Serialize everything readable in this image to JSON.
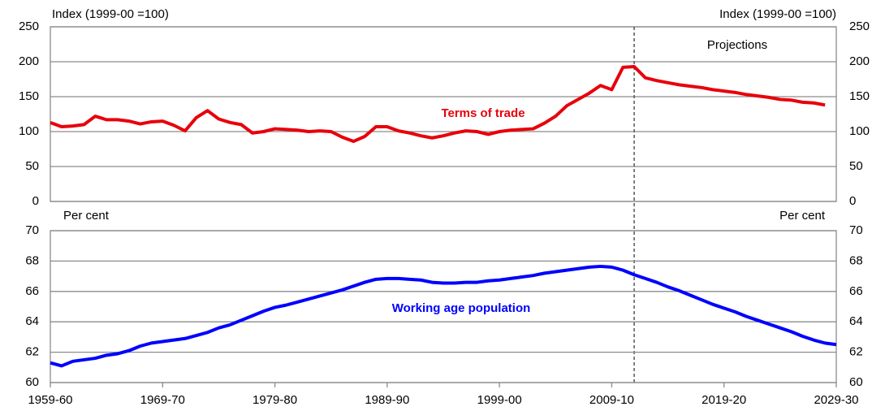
{
  "chart_data": [
    {
      "type": "line",
      "ylabel": "Index (1999-00 =100)",
      "annotation": "Projections",
      "projection_x": 2011,
      "x": [
        1959,
        1960,
        1961,
        1962,
        1963,
        1964,
        1965,
        1966,
        1967,
        1968,
        1969,
        1970,
        1971,
        1972,
        1973,
        1974,
        1975,
        1976,
        1977,
        1978,
        1979,
        1980,
        1981,
        1982,
        1983,
        1984,
        1985,
        1986,
        1987,
        1988,
        1989,
        1990,
        1991,
        1992,
        1993,
        1994,
        1995,
        1996,
        1997,
        1998,
        1999,
        2000,
        2001,
        2002,
        2003,
        2004,
        2005,
        2006,
        2007,
        2008,
        2009,
        2010,
        2011,
        2012,
        2013,
        2014,
        2015,
        2016,
        2017,
        2018,
        2019,
        2020,
        2021,
        2022,
        2023,
        2024,
        2025,
        2026,
        2027,
        2028,
        2029
      ],
      "xlim": [
        1959,
        2029
      ],
      "ylim": [
        0,
        250
      ],
      "yticks": [
        0,
        50,
        100,
        150,
        200,
        250
      ],
      "grid": true,
      "series": [
        {
          "name": "Terms of trade",
          "color": "#e8000b",
          "values": [
            113,
            107,
            108,
            110,
            122,
            117,
            117,
            115,
            111,
            114,
            115,
            109,
            101,
            120,
            130,
            118,
            113,
            110,
            98,
            100,
            104,
            103,
            102,
            100,
            101,
            100,
            92,
            86,
            93,
            107,
            107,
            101,
            98,
            94,
            91,
            94,
            98,
            101,
            100,
            96,
            100,
            102,
            103,
            104,
            112,
            122,
            137,
            146,
            155,
            166,
            160,
            192,
            193,
            177,
            173,
            170,
            167,
            165,
            163,
            160,
            158,
            156,
            153,
            151,
            149,
            146,
            145,
            142,
            141,
            138,
            null
          ]
        }
      ]
    },
    {
      "type": "line",
      "ylabel": "Per cent",
      "x": [
        1959,
        1960,
        1961,
        1962,
        1963,
        1964,
        1965,
        1966,
        1967,
        1968,
        1969,
        1970,
        1971,
        1972,
        1973,
        1974,
        1975,
        1976,
        1977,
        1978,
        1979,
        1980,
        1981,
        1982,
        1983,
        1984,
        1985,
        1986,
        1987,
        1988,
        1989,
        1990,
        1991,
        1992,
        1993,
        1994,
        1995,
        1996,
        1997,
        1998,
        1999,
        2000,
        2001,
        2002,
        2003,
        2004,
        2005,
        2006,
        2007,
        2008,
        2009,
        2010,
        2011,
        2012,
        2013,
        2014,
        2015,
        2016,
        2017,
        2018,
        2019,
        2020,
        2021,
        2022,
        2023,
        2024,
        2025,
        2026,
        2027,
        2028,
        2029
      ],
      "xlim": [
        1959,
        2029
      ],
      "xticks": [
        {
          "value": 1959,
          "label": "1959-60"
        },
        {
          "value": 1969,
          "label": "1969-70"
        },
        {
          "value": 1979,
          "label": "1979-80"
        },
        {
          "value": 1989,
          "label": "1989-90"
        },
        {
          "value": 1999,
          "label": "1999-00"
        },
        {
          "value": 2009,
          "label": "2009-10"
        },
        {
          "value": 2019,
          "label": "2019-20"
        },
        {
          "value": 2029,
          "label": "2029-30"
        }
      ],
      "ylim": [
        60,
        70
      ],
      "yticks": [
        60,
        62,
        64,
        66,
        68,
        70
      ],
      "grid": true,
      "series": [
        {
          "name": "Working age population",
          "color": "#0000ff",
          "values": [
            61.3,
            61.1,
            61.4,
            61.5,
            61.6,
            61.8,
            61.9,
            62.1,
            62.4,
            62.6,
            62.7,
            62.8,
            62.9,
            63.1,
            63.3,
            63.6,
            63.8,
            64.1,
            64.4,
            64.7,
            64.95,
            65.1,
            65.3,
            65.5,
            65.7,
            65.9,
            66.1,
            66.35,
            66.6,
            66.8,
            66.85,
            66.85,
            66.8,
            66.75,
            66.6,
            66.55,
            66.55,
            66.6,
            66.6,
            66.7,
            66.75,
            66.85,
            66.95,
            67.05,
            67.2,
            67.3,
            67.4,
            67.5,
            67.6,
            67.65,
            67.6,
            67.4,
            67.1,
            66.85,
            66.6,
            66.3,
            66.05,
            65.75,
            65.45,
            65.15,
            64.9,
            64.65,
            64.35,
            64.1,
            63.85,
            63.6,
            63.35,
            63.05,
            62.8,
            62.6,
            62.5
          ]
        }
      ]
    }
  ]
}
